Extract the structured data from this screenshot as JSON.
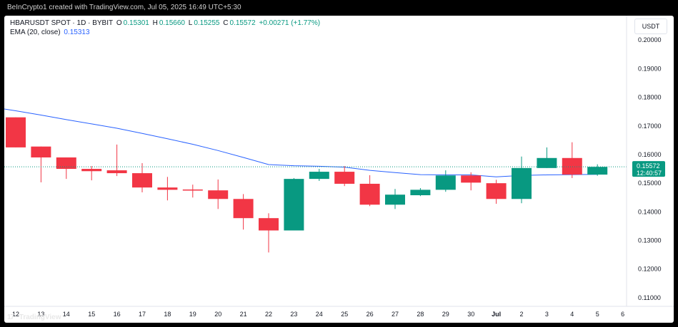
{
  "header": {
    "credit": "BeInCrypto1 created with TradingView.com, Jul 05, 2025 16:49 UTC+5:30"
  },
  "legend": {
    "symbol": "HBARUSDT SPOT · 1D · BYBIT",
    "o_label": "O",
    "o_value": "0.15301",
    "h_label": "H",
    "h_value": "0.15660",
    "l_label": "L",
    "l_value": "0.15255",
    "c_label": "C",
    "c_value": "0.15572",
    "change": "+0.00271 (+1.77%)",
    "ema_label": "EMA (20, close)",
    "ema_value": "0.15313"
  },
  "currency": "USDT",
  "last_price": {
    "value": "0.15572",
    "countdown": "12:40:57"
  },
  "footer": {
    "brand": "TradingView",
    "mark": "17"
  },
  "colors": {
    "up": "#089981",
    "down": "#f23645",
    "ema": "#2962ff",
    "price_line": "#089981"
  },
  "chart_data": {
    "type": "candlestick",
    "ylim": [
      0.107,
      0.2085
    ],
    "y_ticks": [
      "0.20000",
      "0.19000",
      "0.18000",
      "0.17000",
      "0.16000",
      "0.15000",
      "0.14000",
      "0.13000",
      "0.12000",
      "0.11000"
    ],
    "x_labels": [
      "12",
      "13",
      "14",
      "15",
      "16",
      "17",
      "18",
      "19",
      "20",
      "21",
      "22",
      "23",
      "24",
      "25",
      "26",
      "27",
      "28",
      "29",
      "30",
      "Jul",
      "2",
      "3",
      "4",
      "5",
      "6"
    ],
    "candles": [
      {
        "x": "12",
        "o": 0.173,
        "h": 0.173,
        "l": 0.1625,
        "c": 0.1625
      },
      {
        "x": "13",
        "o": 0.1628,
        "h": 0.1628,
        "l": 0.1503,
        "c": 0.159
      },
      {
        "x": "14",
        "o": 0.159,
        "h": 0.159,
        "l": 0.1515,
        "c": 0.155
      },
      {
        "x": "15",
        "o": 0.155,
        "h": 0.156,
        "l": 0.151,
        "c": 0.1542
      },
      {
        "x": "16",
        "o": 0.1545,
        "h": 0.1635,
        "l": 0.1525,
        "c": 0.1535
      },
      {
        "x": "17",
        "o": 0.1535,
        "h": 0.157,
        "l": 0.1468,
        "c": 0.1485
      },
      {
        "x": "18",
        "o": 0.1485,
        "h": 0.1522,
        "l": 0.144,
        "c": 0.1477
      },
      {
        "x": "19",
        "o": 0.1478,
        "h": 0.1495,
        "l": 0.145,
        "c": 0.1475
      },
      {
        "x": "20",
        "o": 0.1475,
        "h": 0.1513,
        "l": 0.141,
        "c": 0.1445
      },
      {
        "x": "21",
        "o": 0.1445,
        "h": 0.1462,
        "l": 0.1338,
        "c": 0.1378
      },
      {
        "x": "22",
        "o": 0.1378,
        "h": 0.1395,
        "l": 0.1258,
        "c": 0.1335
      },
      {
        "x": "23",
        "o": 0.1335,
        "h": 0.1518,
        "l": 0.1335,
        "c": 0.1515
      },
      {
        "x": "24",
        "o": 0.1515,
        "h": 0.155,
        "l": 0.1508,
        "c": 0.154
      },
      {
        "x": "25",
        "o": 0.154,
        "h": 0.156,
        "l": 0.149,
        "c": 0.1498
      },
      {
        "x": "26",
        "o": 0.1498,
        "h": 0.1528,
        "l": 0.142,
        "c": 0.1425
      },
      {
        "x": "27",
        "o": 0.1425,
        "h": 0.148,
        "l": 0.141,
        "c": 0.146
      },
      {
        "x": "28",
        "o": 0.1458,
        "h": 0.1483,
        "l": 0.1455,
        "c": 0.1477
      },
      {
        "x": "29",
        "o": 0.1477,
        "h": 0.1545,
        "l": 0.147,
        "c": 0.1527
      },
      {
        "x": "30",
        "o": 0.1527,
        "h": 0.1538,
        "l": 0.1475,
        "c": 0.1502
      },
      {
        "x": "Jul",
        "o": 0.15,
        "h": 0.1512,
        "l": 0.1428,
        "c": 0.1445
      },
      {
        "x": "2",
        "o": 0.1445,
        "h": 0.1593,
        "l": 0.143,
        "c": 0.1553
      },
      {
        "x": "3",
        "o": 0.1553,
        "h": 0.1625,
        "l": 0.1553,
        "c": 0.1588
      },
      {
        "x": "4",
        "o": 0.1588,
        "h": 0.1643,
        "l": 0.1518,
        "c": 0.153
      },
      {
        "x": "5",
        "o": 0.153,
        "h": 0.1566,
        "l": 0.1526,
        "c": 0.1557
      }
    ],
    "ema": [
      0.1753,
      0.1738,
      0.1722,
      0.1707,
      0.1692,
      0.1674,
      0.1655,
      0.1636,
      0.1614,
      0.159,
      0.1565,
      0.1561,
      0.1559,
      0.1556,
      0.1545,
      0.1537,
      0.153,
      0.1529,
      0.1529,
      0.1522,
      0.1527,
      0.1529,
      0.153,
      0.1531
    ],
    "last_price": 0.15572,
    "grid": false
  }
}
